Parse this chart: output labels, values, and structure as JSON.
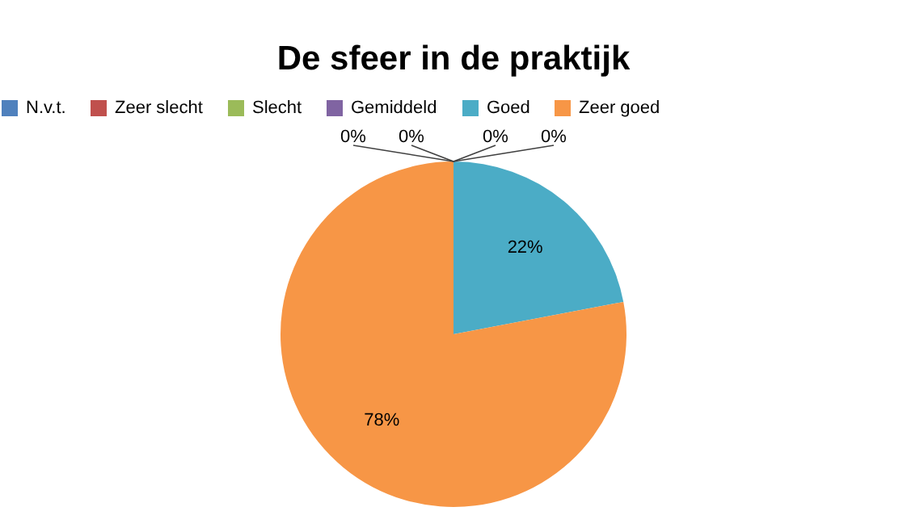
{
  "chart_data": {
    "type": "pie",
    "title": "De sfeer in de praktijk",
    "categories": [
      "N.v.t.",
      "Zeer slecht",
      "Slecht",
      "Gemiddeld",
      "Goed",
      "Zeer goed"
    ],
    "values": [
      0,
      0,
      0,
      0,
      22,
      78
    ],
    "colors": [
      "#4f81bd",
      "#c0504d",
      "#9bbb59",
      "#8064a2",
      "#4bacc6",
      "#f79646"
    ],
    "value_labels": [
      "0%",
      "0%",
      "0%",
      "0%",
      "22%",
      "78%"
    ],
    "legend": "top"
  }
}
